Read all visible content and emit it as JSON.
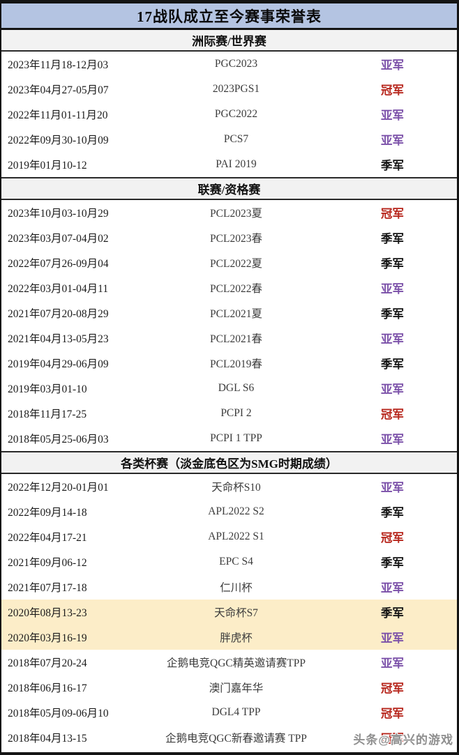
{
  "title": "17战队成立至今赛事荣誉表",
  "watermark": {
    "text": "头条@高兴的游戏"
  },
  "colors": {
    "champion": "#b7271d",
    "runner_up": "#7a4fa8",
    "third": "#141414",
    "title_bg": "#b4c4e2",
    "section_header_bg": "#f2f2f2",
    "smg_row_bg": "#fcedc8"
  },
  "legend_note": "淡金底色区为SMG时期成绩",
  "sections": [
    {
      "header": "洲际赛/世界赛",
      "rows": [
        {
          "date": "2023年11月18-12月03",
          "tournament": "PGC2023",
          "result": "亚军",
          "result_type": "runner_up",
          "smg": false
        },
        {
          "date": "2023年04月27-05月07",
          "tournament": "2023PGS1",
          "result": "冠军",
          "result_type": "champion",
          "smg": false
        },
        {
          "date": "2022年11月01-11月20",
          "tournament": "PGC2022",
          "result": "亚军",
          "result_type": "runner_up",
          "smg": false
        },
        {
          "date": "2022年09月30-10月09",
          "tournament": "PCS7",
          "result": "亚军",
          "result_type": "runner_up",
          "smg": false
        },
        {
          "date": "2019年01月10-12",
          "tournament": "PAI 2019",
          "result": "季军",
          "result_type": "third",
          "smg": false
        }
      ]
    },
    {
      "header": "联赛/资格赛",
      "rows": [
        {
          "date": "2023年10月03-10月29",
          "tournament": "PCL2023夏",
          "result": "冠军",
          "result_type": "champion",
          "smg": false
        },
        {
          "date": "2023年03月07-04月02",
          "tournament": "PCL2023春",
          "result": "季军",
          "result_type": "third",
          "smg": false
        },
        {
          "date": "2022年07月26-09月04",
          "tournament": "PCL2022夏",
          "result": "季军",
          "result_type": "third",
          "smg": false
        },
        {
          "date": "2022年03月01-04月11",
          "tournament": "PCL2022春",
          "result": "亚军",
          "result_type": "runner_up",
          "smg": false
        },
        {
          "date": "2021年07月20-08月29",
          "tournament": "PCL2021夏",
          "result": "季军",
          "result_type": "third",
          "smg": false
        },
        {
          "date": "2021年04月13-05月23",
          "tournament": "PCL2021春",
          "result": "亚军",
          "result_type": "runner_up",
          "smg": false
        },
        {
          "date": "2019年04月29-06月09",
          "tournament": "PCL2019春",
          "result": "季军",
          "result_type": "third",
          "smg": false
        },
        {
          "date": "2019年03月01-10",
          "tournament": "DGL S6",
          "result": "亚军",
          "result_type": "runner_up",
          "smg": false
        },
        {
          "date": "2018年11月17-25",
          "tournament": "PCPI 2",
          "result": "冠军",
          "result_type": "champion",
          "smg": false
        },
        {
          "date": "2018年05月25-06月03",
          "tournament": "PCPI 1 TPP",
          "result": "亚军",
          "result_type": "runner_up",
          "smg": false
        }
      ]
    },
    {
      "header": "各类杯赛（淡金底色区为SMG时期成绩）",
      "rows": [
        {
          "date": "2022年12月20-01月01",
          "tournament": "天命杯S10",
          "result": "亚军",
          "result_type": "runner_up",
          "smg": false
        },
        {
          "date": "2022年09月14-18",
          "tournament": "APL2022 S2",
          "result": "季军",
          "result_type": "third",
          "smg": false
        },
        {
          "date": "2022年04月17-21",
          "tournament": "APL2022 S1",
          "result": "冠军",
          "result_type": "champion",
          "smg": false
        },
        {
          "date": "2021年09月06-12",
          "tournament": "EPC S4",
          "result": "季军",
          "result_type": "third",
          "smg": false
        },
        {
          "date": "2021年07月17-18",
          "tournament": "仁川杯",
          "result": "亚军",
          "result_type": "runner_up",
          "smg": false
        },
        {
          "date": "2020年08月13-23",
          "tournament": "天命杯S7",
          "result": "季军",
          "result_type": "third",
          "smg": true
        },
        {
          "date": "2020年03月16-19",
          "tournament": "胖虎杯",
          "result": "亚军",
          "result_type": "runner_up",
          "smg": true
        },
        {
          "date": "2018年07月20-24",
          "tournament": "企鹅电竞QGC精英邀请赛TPP",
          "result": "亚军",
          "result_type": "runner_up",
          "smg": false
        },
        {
          "date": "2018年06月16-17",
          "tournament": "澳门嘉年华",
          "result": "冠军",
          "result_type": "champion",
          "smg": false
        },
        {
          "date": "2018年05月09-06月10",
          "tournament": "DGL4 TPP",
          "result": "冠军",
          "result_type": "champion",
          "smg": false
        },
        {
          "date": "2018年04月13-15",
          "tournament": "企鹅电竞QGC新春邀请赛 TPP",
          "result": "冠军",
          "result_type": "champion",
          "smg": false
        }
      ]
    }
  ]
}
